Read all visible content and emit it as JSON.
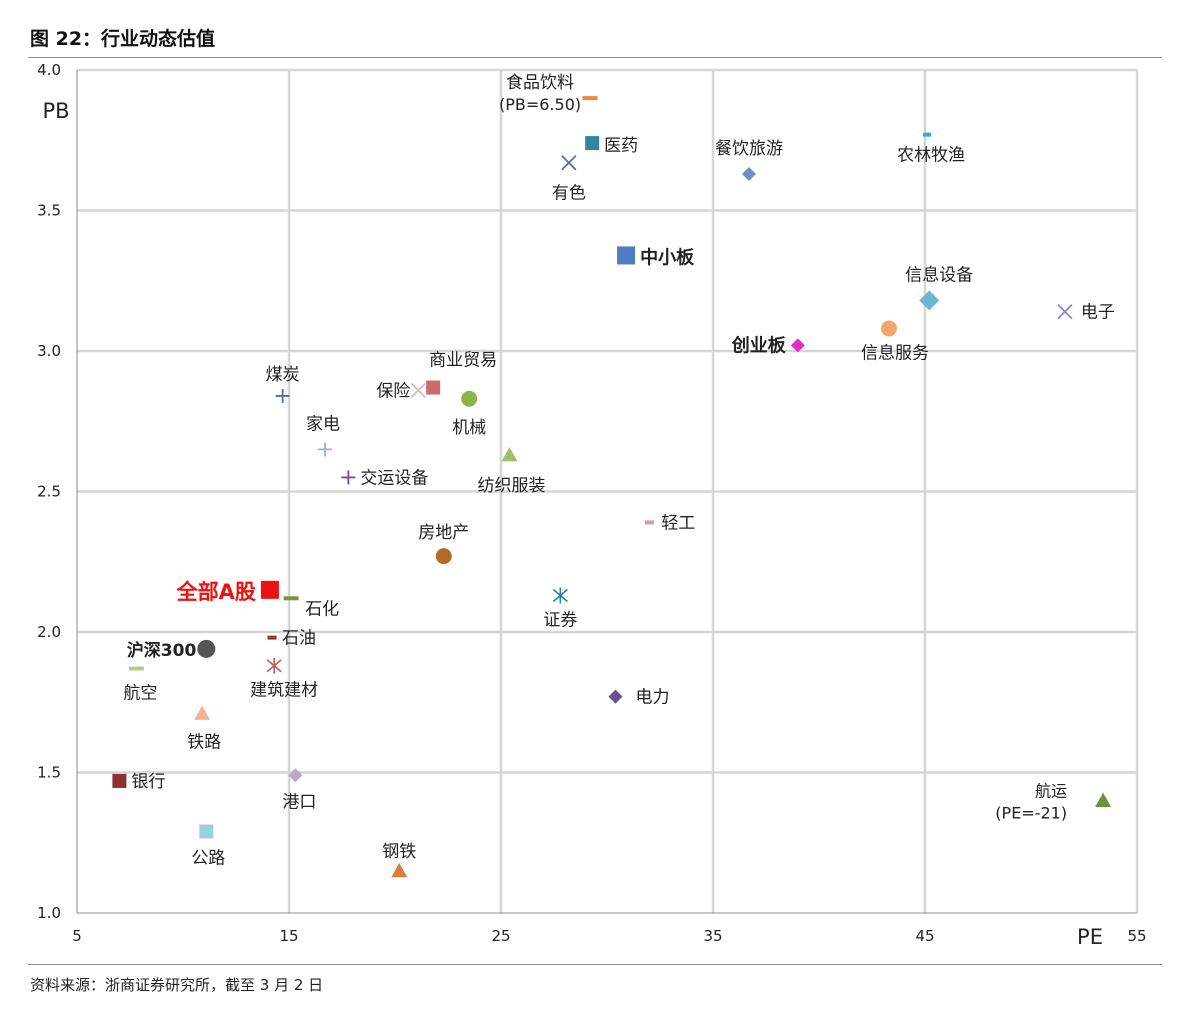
{
  "figure": {
    "title": "图 22：行业动态估值",
    "source": "资料来源：浙商证券研究所，截至 3 月 2 日"
  },
  "chart_data": {
    "type": "scatter",
    "title": "",
    "xlabel": "PE",
    "ylabel": "PB",
    "xlim": [
      5,
      55
    ],
    "ylim": [
      1.0,
      4.0
    ],
    "xticks": [
      "5",
      "15",
      "25",
      "35",
      "45",
      "55"
    ],
    "yticks": [
      "1.0",
      "1.5",
      "2.0",
      "2.5",
      "3.0",
      "3.5",
      "4.0"
    ],
    "grid": true,
    "legend": "none",
    "points": [
      {
        "name": "食品饮料",
        "note": "(PB=6.50)",
        "x": 29.2,
        "y": 3.9,
        "marker": "dash",
        "color": "#e8893a"
      },
      {
        "name": "医药",
        "x": 29.3,
        "y": 3.74,
        "marker": "square",
        "color": "#31879f"
      },
      {
        "name": "有色",
        "x": 28.2,
        "y": 3.67,
        "marker": "x",
        "color": "#4f6fa5"
      },
      {
        "name": "餐饮旅游",
        "x": 36.7,
        "y": 3.63,
        "marker": "diamond",
        "color": "#6f8fc8"
      },
      {
        "name": "农林牧渔",
        "x": 45.1,
        "y": 3.77,
        "marker": "dash",
        "color": "#3ba8d3"
      },
      {
        "name": "中小板",
        "x": 30.9,
        "y": 3.34,
        "marker": "square",
        "color": "#4d7cc1",
        "bold": true
      },
      {
        "name": "信息设备",
        "x": 45.2,
        "y": 3.18,
        "marker": "diamond",
        "color": "#6bb5d6"
      },
      {
        "name": "电子",
        "x": 51.6,
        "y": 3.14,
        "marker": "x",
        "color": "#8b86c2"
      },
      {
        "name": "创业板",
        "x": 39.0,
        "y": 3.02,
        "marker": "diamond",
        "color": "#df2fc0",
        "bold": true
      },
      {
        "name": "信息服务",
        "x": 43.3,
        "y": 3.08,
        "marker": "circle",
        "color": "#f5a56b"
      },
      {
        "name": "煤炭",
        "x": 14.7,
        "y": 2.84,
        "marker": "plus",
        "color": "#4f6fa5"
      },
      {
        "name": "保险",
        "x": 21.1,
        "y": 2.86,
        "marker": "x",
        "color": "#dcb8b8"
      },
      {
        "name": "商业贸易",
        "x": 21.8,
        "y": 2.87,
        "marker": "square",
        "color": "#c96b6b"
      },
      {
        "name": "机械",
        "x": 23.5,
        "y": 2.83,
        "marker": "circle",
        "color": "#8cb44a"
      },
      {
        "name": "家电",
        "x": 16.7,
        "y": 2.65,
        "marker": "plus",
        "color": "#9fb2d6"
      },
      {
        "name": "纺织服装",
        "x": 25.4,
        "y": 2.63,
        "marker": "triangle",
        "color": "#9fbf6d"
      },
      {
        "name": "交运设备",
        "x": 17.8,
        "y": 2.55,
        "marker": "plus",
        "color": "#6d4f9b"
      },
      {
        "name": "轻工",
        "x": 32.0,
        "y": 2.39,
        "marker": "dash",
        "color": "#d99a9a"
      },
      {
        "name": "房地产",
        "x": 22.3,
        "y": 2.27,
        "marker": "circle",
        "color": "#b36a2e"
      },
      {
        "name": "全部A股",
        "x": 14.1,
        "y": 2.15,
        "marker": "square",
        "color": "#ee1111",
        "bold": true
      },
      {
        "name": "石化",
        "x": 15.1,
        "y": 2.12,
        "marker": "dash",
        "color": "#6f9a3a"
      },
      {
        "name": "证券",
        "x": 27.8,
        "y": 2.13,
        "marker": "asterisk",
        "color": "#2f7f9f"
      },
      {
        "name": "沪深300",
        "x": 11.1,
        "y": 1.94,
        "marker": "circle",
        "color": "#555555",
        "bold": true
      },
      {
        "name": "石油",
        "x": 14.2,
        "y": 1.98,
        "marker": "dash",
        "color": "#a0362a"
      },
      {
        "name": "建筑建材",
        "x": 14.3,
        "y": 1.88,
        "marker": "asterisk",
        "color": "#c45a5a"
      },
      {
        "name": "航空",
        "x": 7.8,
        "y": 1.87,
        "marker": "dash",
        "color": "#a9cf8d"
      },
      {
        "name": "电力",
        "x": 30.4,
        "y": 1.77,
        "marker": "diamond",
        "color": "#6b4f8f"
      },
      {
        "name": "铁路",
        "x": 10.9,
        "y": 1.71,
        "marker": "triangle",
        "color": "#f5b396"
      },
      {
        "name": "银行",
        "x": 7.0,
        "y": 1.47,
        "marker": "square",
        "color": "#8f2f2f"
      },
      {
        "name": "港口",
        "x": 15.3,
        "y": 1.49,
        "marker": "diamond",
        "color": "#b8a8d0"
      },
      {
        "name": "公路",
        "x": 11.1,
        "y": 1.29,
        "marker": "square",
        "color": "#9ccfe0"
      },
      {
        "name": "钢铁",
        "x": 20.2,
        "y": 1.15,
        "marker": "triangle",
        "color": "#d97d3a"
      },
      {
        "name": "航运",
        "note": "(PE=-21)",
        "x": 53.4,
        "y": 1.4,
        "marker": "triangle",
        "color": "#6f8f3a"
      }
    ]
  }
}
